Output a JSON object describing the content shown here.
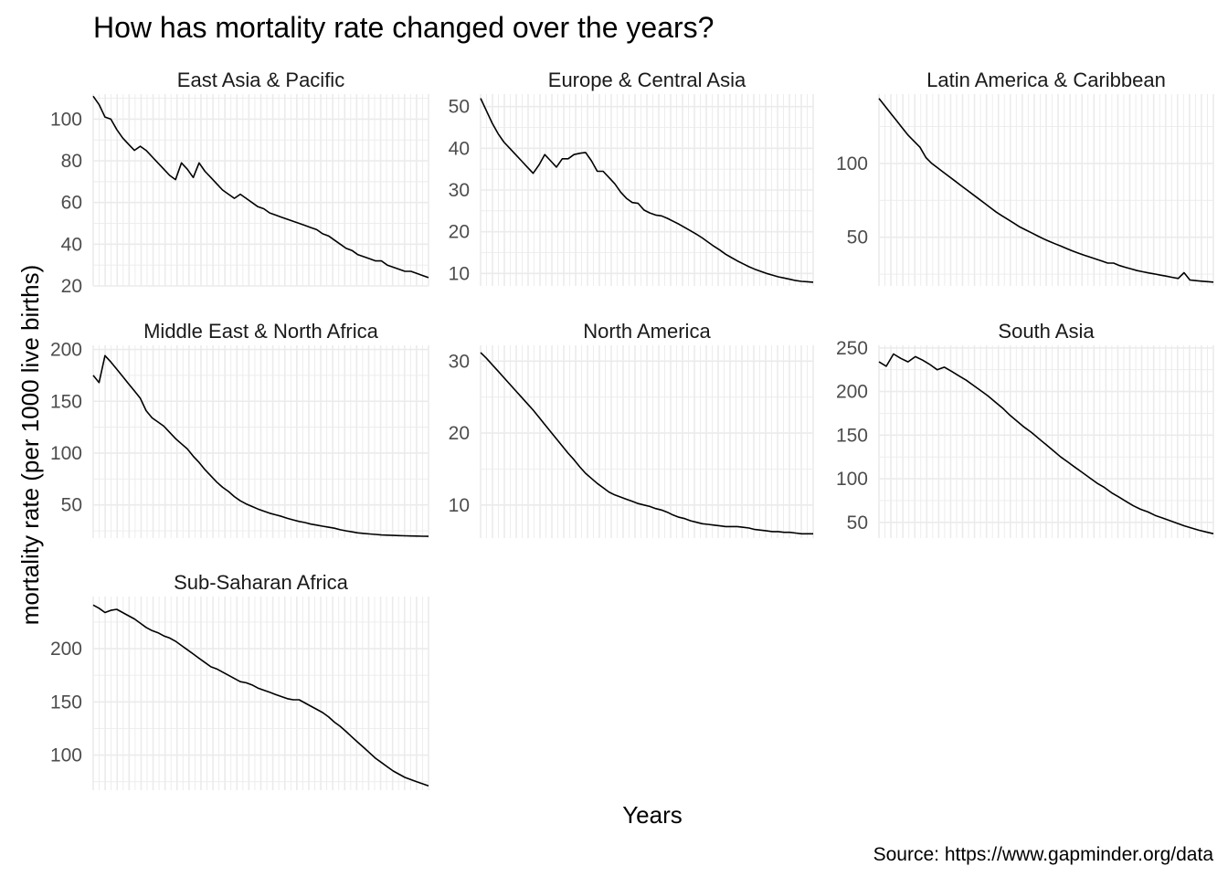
{
  "chart_data": {
    "type": "line",
    "title": "How has mortality rate changed over the years?",
    "xlabel": "Years",
    "ylabel": "mortality rate (per 1000 live births)",
    "caption": "Source: https://www.gapminder.org/data",
    "x_tick_labels_shown": false,
    "grid": true,
    "facets": [
      {
        "name": "East Asia & Pacific",
        "yticks": [
          20,
          40,
          60,
          80,
          100
        ],
        "ylim": [
          20,
          112
        ],
        "values": [
          111,
          107,
          101,
          100,
          95,
          91,
          88,
          85,
          87,
          85,
          82,
          79,
          76,
          73,
          71,
          79,
          76,
          72,
          79,
          75,
          72,
          69,
          66,
          64,
          62,
          64,
          62,
          60,
          58,
          57,
          55,
          54,
          53,
          52,
          51,
          50,
          49,
          48,
          47,
          45,
          44,
          42,
          40,
          38,
          37,
          35,
          34,
          33,
          32,
          32,
          30,
          29,
          28,
          27,
          27,
          26,
          25,
          24
        ]
      },
      {
        "name": "Europe & Central Asia",
        "yticks": [
          10,
          20,
          30,
          40,
          50
        ],
        "ylim": [
          7,
          53
        ],
        "values": [
          52,
          49,
          46,
          43.5,
          41.5,
          40,
          38.5,
          37,
          35.5,
          34,
          36,
          38.5,
          37,
          35.5,
          37.5,
          37.5,
          38.5,
          38.8,
          39,
          37,
          34.5,
          34.5,
          33,
          31.5,
          29.5,
          28,
          27,
          26.8,
          25.2,
          24.5,
          24,
          23.8,
          23.2,
          22.5,
          21.8,
          21,
          20.2,
          19.4,
          18.5,
          17.5,
          16.5,
          15.6,
          14.6,
          13.8,
          13,
          12.3,
          11.6,
          11,
          10.5,
          10,
          9.6,
          9.2,
          8.9,
          8.6,
          8.3,
          8.1,
          8,
          7.9
        ]
      },
      {
        "name": "Latin America & Caribbean",
        "yticks": [
          50,
          100
        ],
        "ylim": [
          17,
          147
        ],
        "values": [
          144,
          139,
          134,
          129,
          124,
          119,
          115,
          111,
          104,
          100,
          97,
          94,
          91,
          88,
          85,
          82,
          79,
          76,
          73,
          70,
          67,
          64.5,
          62,
          59.5,
          57,
          55,
          53,
          51,
          49,
          47.3,
          45.6,
          44,
          42.3,
          40.7,
          39.2,
          37.8,
          36.5,
          35.2,
          33.9,
          32.5,
          32.5,
          30.8,
          29.6,
          28.5,
          27.4,
          26.6,
          25.8,
          25.1,
          24.3,
          23.6,
          22.8,
          22.1,
          26,
          21,
          20.6,
          20.2,
          19.9,
          19.6
        ]
      },
      {
        "name": "Middle East & North Africa",
        "yticks": [
          50,
          100,
          150,
          200
        ],
        "ylim": [
          18,
          204
        ],
        "values": [
          175,
          168,
          194,
          188,
          181,
          174,
          167,
          160,
          153,
          141,
          134,
          130,
          126,
          120,
          114,
          109,
          104,
          97,
          91,
          84,
          78,
          72,
          67,
          63,
          58,
          54,
          51,
          48.5,
          46,
          44,
          42,
          40.5,
          39,
          37,
          35.5,
          34,
          33,
          31.5,
          30.5,
          29.5,
          28.5,
          27.5,
          26,
          25,
          24,
          23,
          22.5,
          22,
          21.5,
          21,
          20.8,
          20.6,
          20.4,
          20.2,
          20,
          19.9,
          19.8,
          19.7
        ]
      },
      {
        "name": "North America",
        "yticks": [
          10,
          20,
          30
        ],
        "ylim": [
          5.4,
          32.2
        ],
        "values": [
          31.2,
          30.4,
          29.5,
          28.6,
          27.7,
          26.8,
          25.9,
          25,
          24.1,
          23.2,
          22.2,
          21.2,
          20.2,
          19.2,
          18.2,
          17.2,
          16.3,
          15.3,
          14.4,
          13.7,
          13,
          12.4,
          11.8,
          11.4,
          11.1,
          10.8,
          10.5,
          10.2,
          10,
          9.8,
          9.5,
          9.3,
          9,
          8.6,
          8.3,
          8.1,
          7.8,
          7.6,
          7.4,
          7.3,
          7.2,
          7.1,
          7,
          7,
          7,
          6.9,
          6.8,
          6.6,
          6.5,
          6.4,
          6.3,
          6.3,
          6.2,
          6.2,
          6.1,
          6,
          6,
          6
        ]
      },
      {
        "name": "South Asia",
        "yticks": [
          50,
          100,
          150,
          200,
          250
        ],
        "ylim": [
          32,
          253
        ],
        "values": [
          234,
          229,
          243,
          238,
          234,
          240,
          236,
          231,
          225,
          228,
          223,
          218,
          213,
          207,
          201,
          195,
          188,
          181,
          173,
          166,
          159,
          153,
          146,
          139,
          132,
          125,
          119,
          113,
          107,
          101,
          95,
          90,
          84,
          79,
          74,
          69,
          65,
          62,
          58,
          55,
          52,
          49,
          46,
          43.5,
          41,
          39,
          37
        ]
      },
      {
        "name": "Sub-Saharan Africa",
        "yticks": [
          100,
          150,
          200
        ],
        "ylim": [
          67,
          249
        ],
        "values": [
          241,
          238,
          234,
          236,
          237,
          234,
          231,
          228,
          224,
          220,
          217,
          215,
          212,
          210,
          207,
          203,
          199,
          195,
          191,
          187,
          183,
          181,
          178,
          175,
          172,
          169,
          168,
          166,
          163,
          161,
          159,
          157,
          155,
          153,
          152,
          152,
          149,
          146,
          143,
          140,
          136,
          131,
          127,
          122,
          117,
          112,
          107,
          102,
          97,
          93,
          89,
          85,
          82,
          79,
          77,
          75,
          73,
          71
        ]
      }
    ]
  }
}
